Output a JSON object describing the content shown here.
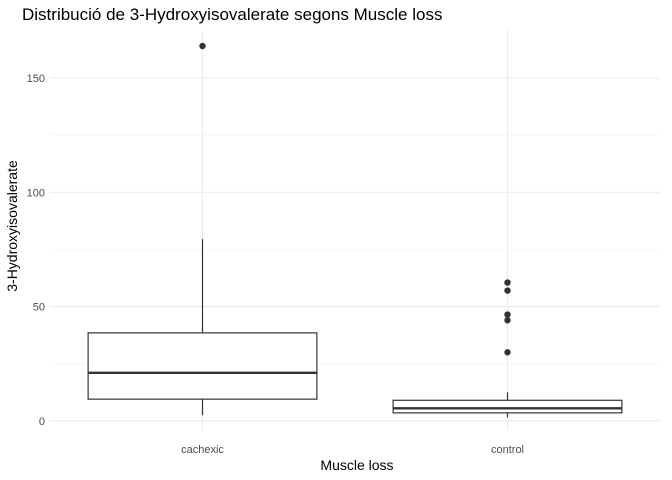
{
  "chart_data": {
    "type": "boxplot",
    "title": "Distribució de 3-Hydroxyisovalerate segons Muscle loss",
    "xlabel": "Muscle loss",
    "ylabel": "3-Hydroxyisovalerate",
    "ylim": [
      -4,
      171
    ],
    "y_ticks": [
      0,
      50,
      100,
      150
    ],
    "grid": true,
    "categories": [
      "cachexic",
      "control"
    ],
    "boxes": [
      {
        "category": "cachexic",
        "min": 2.5,
        "q1": 9.5,
        "median": 21.0,
        "q3": 38.5,
        "max": 79.5,
        "outliers": [
          164
        ]
      },
      {
        "category": "control",
        "min": 1.5,
        "q1": 3.5,
        "median": 5.5,
        "q3": 9.0,
        "max": 12.5,
        "outliers": [
          30,
          44,
          46.5,
          57,
          60.5
        ]
      }
    ]
  }
}
